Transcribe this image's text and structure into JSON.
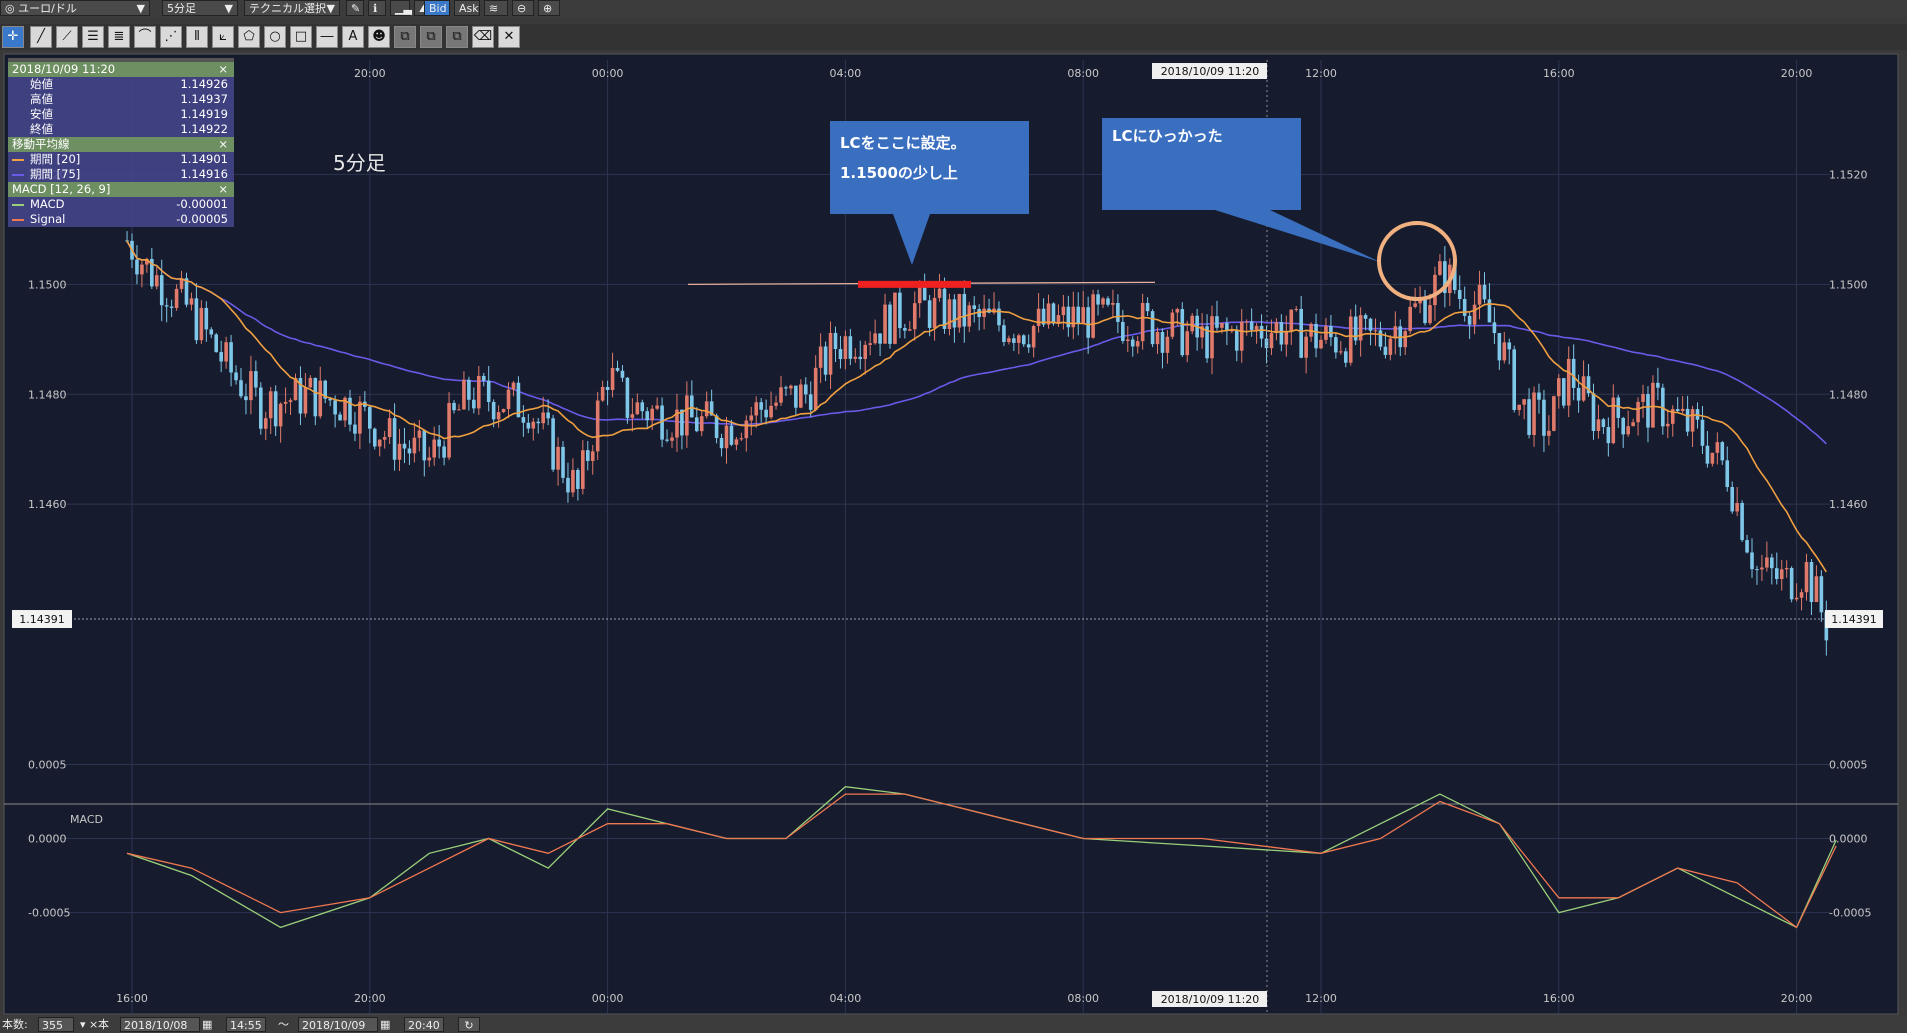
{
  "toolbar": {
    "symbol": "ユーロ/ドル",
    "timeframe": "5分足",
    "technical": "テクニカル選択",
    "bid": "Bid",
    "ask": "Ask"
  },
  "info_panel": {
    "datetime": "2018/10/09 11:20",
    "close_x": "×",
    "ohlc": [
      {
        "label": "始値",
        "value": "1.14926"
      },
      {
        "label": "高値",
        "value": "1.14937"
      },
      {
        "label": "安値",
        "value": "1.14919"
      },
      {
        "label": "終値",
        "value": "1.14922"
      }
    ],
    "ma_header": "移動平均線",
    "ma": [
      {
        "label": "期間 [20]",
        "value": "1.14901",
        "color": "#f0a040"
      },
      {
        "label": "期間 [75]",
        "value": "1.14916",
        "color": "#6a5ae8"
      }
    ],
    "macd_header": "MACD [12, 26, 9]",
    "macd": [
      {
        "label": "MACD",
        "value": "-0.00001",
        "color": "#9bd07a"
      },
      {
        "label": "Signal",
        "value": "-0.00005",
        "color": "#f07850"
      }
    ]
  },
  "chart_data": [
    {
      "type": "candlestick",
      "title": "5分足",
      "y_ticks": [
        "1.1520",
        "1.1500",
        "1.1480",
        "1.1460"
      ],
      "ylim": [
        1.1424,
        1.1535
      ],
      "x_ticks": [
        "16:00",
        "20:00",
        "00:00",
        "04:00",
        "08:00",
        "12:00",
        "16:00",
        "20:00"
      ],
      "crosshair_label": "2018/10/09 11:20",
      "current_price": "1.14391",
      "series": [
        {
          "name": "Price (approx. close path)",
          "points": [
            [
              "15:55",
              1.1508
            ],
            [
              "16:20",
              1.1502
            ],
            [
              "17:00",
              1.1495
            ],
            [
              "17:40",
              1.1484
            ],
            [
              "18:10",
              1.1478
            ],
            [
              "19:00",
              1.148
            ],
            [
              "19:40",
              1.1478
            ],
            [
              "20:20",
              1.1472
            ],
            [
              "21:00",
              1.1468
            ],
            [
              "21:40",
              1.148
            ],
            [
              "22:40",
              1.1478
            ],
            [
              "23:30",
              1.1462
            ],
            [
              "00:00",
              1.1484
            ],
            [
              "00:20",
              1.1478
            ],
            [
              "01:00",
              1.1476
            ],
            [
              "02:00",
              1.1474
            ],
            [
              "02:40",
              1.1478
            ],
            [
              "03:20",
              1.148
            ],
            [
              "03:50",
              1.1489
            ],
            [
              "04:30",
              1.1492
            ],
            [
              "05:10",
              1.1496
            ],
            [
              "06:00",
              1.1494
            ],
            [
              "07:00",
              1.1492
            ],
            [
              "08:00",
              1.1494
            ],
            [
              "09:00",
              1.1493
            ],
            [
              "10:00",
              1.149
            ],
            [
              "11:00",
              1.1492
            ],
            [
              "11:20",
              1.1492
            ],
            [
              "12:00",
              1.149
            ],
            [
              "13:00",
              1.149
            ],
            [
              "13:40",
              1.1496
            ],
            [
              "14:05",
              1.1502
            ],
            [
              "14:20",
              1.1498
            ],
            [
              "14:40",
              1.1496
            ],
            [
              "15:00",
              1.149
            ],
            [
              "15:20",
              1.1478
            ],
            [
              "15:50",
              1.1474
            ],
            [
              "16:10",
              1.1484
            ],
            [
              "16:40",
              1.1475
            ],
            [
              "17:20",
              1.1477
            ],
            [
              "17:40",
              1.1478
            ],
            [
              "18:20",
              1.1473
            ],
            [
              "18:50",
              1.1466
            ],
            [
              "19:20",
              1.1448
            ],
            [
              "19:50",
              1.1446
            ],
            [
              "20:10",
              1.1448
            ],
            [
              "20:30",
              1.1438
            ]
          ]
        },
        {
          "name": "期間 [20]",
          "color": "#f0a040"
        },
        {
          "name": "期間 [75]",
          "color": "#6a5ae8"
        }
      ],
      "annotations": [
        {
          "text_lines": [
            "LCをここに設定。",
            "1.1500の少し上"
          ]
        },
        {
          "text_lines": [
            "LCにひっかった"
          ]
        }
      ]
    },
    {
      "type": "line",
      "title": "MACD",
      "y_ticks": [
        "0.0005",
        "0.0000",
        "-0.0005"
      ],
      "ylim": [
        -0.0008,
        0.0008
      ],
      "x_ticks": [
        "16:00",
        "20:00",
        "00:00",
        "04:00",
        "08:00",
        "12:00",
        "16:00",
        "20:00"
      ],
      "crosshair_label": "2018/10/09 11:20",
      "series": [
        {
          "name": "MACD",
          "color": "#9bd07a",
          "points": [
            [
              "15:55",
              -0.0001
            ],
            [
              "17:00",
              -0.00025
            ],
            [
              "18:30",
              -0.0006
            ],
            [
              "20:00",
              -0.0004
            ],
            [
              "21:00",
              -0.0001
            ],
            [
              "22:00",
              0.0
            ],
            [
              "23:00",
              -0.0002
            ],
            [
              "00:00",
              0.0002
            ],
            [
              "01:00",
              0.0001
            ],
            [
              "02:00",
              0.0
            ],
            [
              "03:00",
              0.0
            ],
            [
              "04:00",
              0.00035
            ],
            [
              "05:00",
              0.0003
            ],
            [
              "06:00",
              0.0002
            ],
            [
              "08:00",
              0.0
            ],
            [
              "10:00",
              -5e-05
            ],
            [
              "12:00",
              -0.0001
            ],
            [
              "13:00",
              0.0001
            ],
            [
              "14:00",
              0.0003
            ],
            [
              "15:00",
              0.0001
            ],
            [
              "16:00",
              -0.0005
            ],
            [
              "17:00",
              -0.0004
            ],
            [
              "18:00",
              -0.0002
            ],
            [
              "19:00",
              -0.0004
            ],
            [
              "20:00",
              -0.0006
            ],
            [
              "20:40",
              -1e-05
            ]
          ]
        },
        {
          "name": "Signal",
          "color": "#f07850",
          "points": [
            [
              "15:55",
              -0.0001
            ],
            [
              "17:00",
              -0.0002
            ],
            [
              "18:30",
              -0.0005
            ],
            [
              "20:00",
              -0.0004
            ],
            [
              "21:00",
              -0.0002
            ],
            [
              "22:00",
              0.0
            ],
            [
              "23:00",
              -0.0001
            ],
            [
              "00:00",
              0.0001
            ],
            [
              "01:00",
              0.0001
            ],
            [
              "02:00",
              0.0
            ],
            [
              "03:00",
              0.0
            ],
            [
              "04:00",
              0.0003
            ],
            [
              "05:00",
              0.0003
            ],
            [
              "06:00",
              0.0002
            ],
            [
              "08:00",
              0.0
            ],
            [
              "10:00",
              0.0
            ],
            [
              "12:00",
              -0.0001
            ],
            [
              "13:00",
              0.0
            ],
            [
              "14:00",
              0.00025
            ],
            [
              "15:00",
              0.0001
            ],
            [
              "16:00",
              -0.0004
            ],
            [
              "17:00",
              -0.0004
            ],
            [
              "18:00",
              -0.0002
            ],
            [
              "19:00",
              -0.0003
            ],
            [
              "20:00",
              -0.0006
            ],
            [
              "20:40",
              -5e-05
            ]
          ]
        }
      ]
    }
  ],
  "status": {
    "count_label": "本数:",
    "count": "355",
    "unit": "本",
    "from_date": "2018/10/08",
    "from_time": "14:55",
    "tilde": "～",
    "to_date": "2018/10/09",
    "to_time": "20:40"
  },
  "colors": {
    "chart_bg": "#161b2e",
    "candle_up": "#e07a6a",
    "candle_down": "#7fc7e8",
    "stoploss_line": "#ee2020",
    "circle": "#f0b080",
    "callout": "#3a6fc0"
  }
}
